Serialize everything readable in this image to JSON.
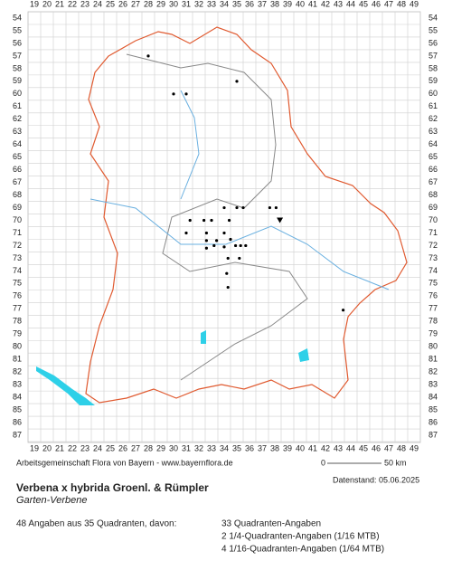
{
  "map": {
    "columns": [
      19,
      20,
      21,
      22,
      23,
      24,
      25,
      26,
      27,
      28,
      29,
      30,
      31,
      32,
      33,
      34,
      35,
      36,
      37,
      38,
      39,
      40,
      41,
      42,
      43,
      44,
      45,
      46,
      47,
      48,
      49
    ],
    "rows": [
      54,
      55,
      56,
      57,
      58,
      59,
      60,
      61,
      62,
      63,
      64,
      65,
      66,
      67,
      68,
      69,
      70,
      71,
      72,
      73,
      74,
      75,
      76,
      77,
      78,
      79,
      80,
      81,
      82,
      83,
      84,
      85,
      86,
      87
    ],
    "records": [
      [
        28,
        57
      ],
      [
        35,
        59
      ],
      [
        30,
        60
      ],
      [
        31,
        60
      ],
      [
        34,
        69
      ],
      [
        35,
        69
      ],
      [
        35.5,
        69
      ],
      [
        37.6,
        69
      ],
      [
        38.1,
        69
      ],
      [
        31.3,
        70
      ],
      [
        32.4,
        70
      ],
      [
        33,
        70
      ],
      [
        34.4,
        70
      ],
      [
        31,
        71
      ],
      [
        32.6,
        71
      ],
      [
        34,
        71
      ],
      [
        32.6,
        71.6
      ],
      [
        33.4,
        71.6
      ],
      [
        34.5,
        71.5
      ],
      [
        32.6,
        72.2
      ],
      [
        33.2,
        72
      ],
      [
        34,
        72.1
      ],
      [
        34.9,
        72
      ],
      [
        35.3,
        72
      ],
      [
        35.7,
        72
      ],
      [
        34.3,
        73
      ],
      [
        35.2,
        73
      ],
      [
        34.2,
        74.2
      ],
      [
        34.3,
        75.3
      ],
      [
        43.4,
        77.1
      ]
    ],
    "highlight_records": [
      [
        38.4,
        70
      ]
    ],
    "scale": {
      "start": "0",
      "end": "50 km"
    }
  },
  "footer": {
    "credit": "Arbeitsgemeinschaft Flora von Bayern - www.bayernflora.de",
    "date": "Datenstand: 05.06.2025",
    "species": "Verbena x hybrida Groenl. & Rümpler",
    "common_name": "Garten-Verbene",
    "summary": "48 Angaben aus 35 Quadranten, davon:",
    "details": [
      "33 Quadranten-Angaben",
      "2 1/4-Quadranten-Angaben (1/16 MTB)",
      "4 1/16-Quadranten-Angaben (1/64 MTB)"
    ]
  }
}
